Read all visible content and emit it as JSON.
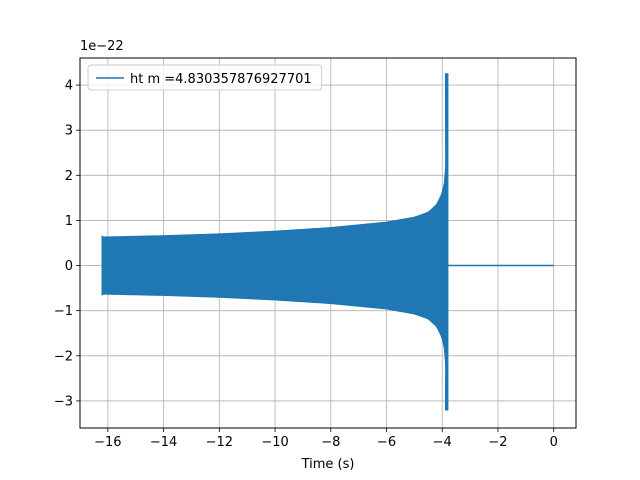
{
  "chart_data": {
    "type": "line",
    "xlabel": "Time (s)",
    "ylabel": "",
    "offset_text": "1e−22",
    "xlim": [
      -17.0,
      0.8
    ],
    "ylim": [
      -3.6,
      4.6
    ],
    "xticks": [
      -16,
      -14,
      -12,
      -10,
      -8,
      -6,
      -4,
      -2,
      0
    ],
    "xtick_labels": [
      "−16",
      "−14",
      "−12",
      "−10",
      "−8",
      "−6",
      "−4",
      "−2",
      "0"
    ],
    "yticks": [
      -3,
      -2,
      -1,
      0,
      1,
      2,
      3,
      4
    ],
    "ytick_labels": [
      "−3",
      "−2",
      "−1",
      "0",
      "1",
      "2",
      "3",
      "4"
    ],
    "grid": true,
    "legend_position": "upper-left",
    "colors": {
      "series": "#1f77b4",
      "grid": "#b0b0b0",
      "axes": "#000000"
    },
    "series": [
      {
        "name": "ht m =4.830357876927701",
        "signal_start_x": -16.2,
        "merger_x": -3.85,
        "end_x": 0.0,
        "envelope": {
          "x": [
            -16.2,
            -14,
            -12,
            -10,
            -8,
            -6,
            -5,
            -4.5,
            -4.2,
            -4.0,
            -3.9,
            -3.86
          ],
          "upper": [
            0.63,
            0.66,
            0.7,
            0.76,
            0.84,
            0.96,
            1.07,
            1.18,
            1.35,
            1.6,
            1.9,
            2.3
          ],
          "lower": [
            -0.63,
            -0.66,
            -0.7,
            -0.76,
            -0.84,
            -0.96,
            -1.07,
            -1.18,
            -1.35,
            -1.6,
            -1.9,
            -2.3
          ]
        },
        "peak_max": 4.25,
        "peak_min": -3.2,
        "post_merger_value": 0.0
      }
    ]
  }
}
